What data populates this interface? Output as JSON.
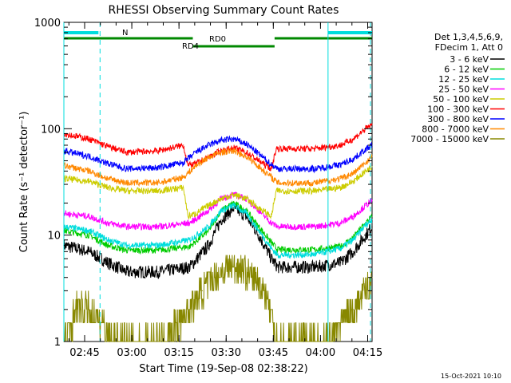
{
  "chart_data": {
    "type": "line",
    "title": "RHESSI Observing Summary Count Rates",
    "xlabel": "Start Time (19-Sep-08 02:38:22)",
    "ylabel": "Count Rate (s⁻¹ detector⁻¹)",
    "y_scale": "log",
    "ylim": [
      1,
      1000
    ],
    "xlim_minutes_after_start": [
      0,
      98
    ],
    "x_ticks": [
      {
        "label": "02:45",
        "t": 6.6
      },
      {
        "label": "03:00",
        "t": 21.6
      },
      {
        "label": "03:15",
        "t": 36.6
      },
      {
        "label": "03:30",
        "t": 51.6
      },
      {
        "label": "03:45",
        "t": 66.6
      },
      {
        "label": "04:00",
        "t": 81.6
      },
      {
        "label": "04:15",
        "t": 96.6
      }
    ],
    "y_ticks": [
      {
        "label": "1",
        "v": 1
      },
      {
        "label": "10",
        "v": 10
      },
      {
        "label": "100",
        "v": 100
      },
      {
        "label": "1000",
        "v": 1000
      }
    ],
    "legend": {
      "placement": "right",
      "header": [
        "Det 1,3,4,5,6,9,",
        "FDecim 1, Att 0"
      ]
    },
    "series": [
      {
        "name": "3 - 6 keV",
        "color": "#000000",
        "x": [
          0,
          8,
          14,
          20,
          30,
          40,
          46,
          50,
          54,
          58,
          62,
          66,
          68,
          72,
          80,
          88,
          92,
          96,
          98
        ],
        "y": [
          8,
          7,
          5.5,
          4.5,
          4.5,
          5,
          8,
          14,
          18,
          15,
          10,
          6,
          5,
          5,
          5,
          5.5,
          7,
          10,
          12
        ]
      },
      {
        "name": "6 - 12 keV",
        "color": "#00cc00",
        "x": [
          0,
          8,
          14,
          20,
          30,
          40,
          46,
          50,
          54,
          58,
          62,
          66,
          68,
          72,
          80,
          88,
          92,
          96,
          98
        ],
        "y": [
          11,
          10,
          8,
          7.2,
          7.2,
          7.8,
          11,
          17,
          20,
          17,
          12,
          8.5,
          7.3,
          7.3,
          7.3,
          7.8,
          9.5,
          13,
          15
        ]
      },
      {
        "name": "12 - 25 keV",
        "color": "#00dddd",
        "x": [
          0,
          8,
          14,
          20,
          30,
          40,
          46,
          50,
          54,
          58,
          62,
          66,
          68,
          72,
          80,
          88,
          92,
          96,
          98
        ],
        "y": [
          12,
          11,
          9,
          8,
          8,
          9,
          12,
          17,
          19,
          16,
          11,
          7.5,
          6.5,
          6.5,
          6.6,
          7.5,
          9,
          12.5,
          14
        ]
      },
      {
        "name": "25 - 50 keV",
        "color": "#ff00ff",
        "x": [
          0,
          8,
          14,
          20,
          30,
          40,
          46,
          50,
          54,
          58,
          62,
          66,
          68,
          72,
          80,
          88,
          92,
          96,
          98
        ],
        "y": [
          16,
          15,
          13,
          12,
          12,
          13,
          17,
          22,
          24,
          22,
          17,
          13,
          12,
          12,
          12,
          13,
          15,
          19,
          21
        ]
      },
      {
        "name": "50 - 100 keV",
        "color": "#cccc00",
        "x": [
          0,
          8,
          14,
          20,
          30,
          38,
          39.5,
          42,
          46,
          50,
          54,
          58,
          62,
          66,
          67.5,
          72,
          80,
          88,
          92,
          96,
          98
        ],
        "y": [
          34,
          32,
          28,
          26,
          26,
          28,
          15,
          16,
          19,
          22,
          24,
          22,
          18,
          15,
          26,
          26,
          26,
          28,
          32,
          40,
          44
        ]
      },
      {
        "name": "100 - 300 keV",
        "color": "#ff0000",
        "x": [
          0,
          8,
          14,
          20,
          30,
          38,
          39.5,
          42,
          46,
          50,
          54,
          58,
          62,
          66,
          67.5,
          72,
          80,
          88,
          92,
          96,
          98
        ],
        "y": [
          90,
          80,
          68,
          60,
          62,
          70,
          45,
          47,
          54,
          62,
          66,
          60,
          50,
          42,
          65,
          65,
          65,
          70,
          80,
          100,
          110
        ]
      },
      {
        "name": "300 - 800 keV",
        "color": "#0000ff",
        "x": [
          0,
          8,
          14,
          20,
          30,
          38,
          42,
          46,
          50,
          54,
          58,
          62,
          66,
          68,
          72,
          80,
          88,
          92,
          96,
          98
        ],
        "y": [
          62,
          55,
          47,
          42,
          43,
          48,
          60,
          70,
          78,
          80,
          72,
          58,
          46,
          42,
          42,
          42,
          46,
          52,
          64,
          70
        ]
      },
      {
        "name": "800 - 7000 keV",
        "color": "#ff8800",
        "x": [
          0,
          8,
          14,
          20,
          30,
          38,
          42,
          46,
          50,
          54,
          58,
          62,
          66,
          68,
          72,
          80,
          88,
          92,
          96,
          98
        ],
        "y": [
          45,
          40,
          34,
          31,
          31,
          35,
          45,
          54,
          60,
          62,
          55,
          44,
          35,
          31,
          31,
          31,
          34,
          38,
          48,
          55
        ]
      },
      {
        "name": "7000 - 15000 keV",
        "color": "#888800",
        "x": [
          0,
          4,
          8,
          12,
          16,
          20,
          24,
          28,
          32,
          36,
          40,
          44,
          48,
          52,
          56,
          60,
          64,
          68,
          72,
          76,
          80,
          84,
          88,
          92,
          96,
          98
        ],
        "y": [
          1,
          2,
          2,
          1.5,
          1,
          1,
          1,
          1,
          1,
          1.5,
          2,
          3,
          4,
          5,
          5,
          4,
          3,
          1,
          1,
          1,
          1,
          1,
          1.5,
          2,
          3,
          4
        ]
      }
    ],
    "annotations": [
      {
        "text": "N",
        "color": "#00dddd"
      },
      {
        "text": "RD0",
        "color": "#008800"
      },
      {
        "text": "RD4",
        "color": "#008800"
      }
    ],
    "status_bars": {
      "night": [
        [
          0,
          11
        ],
        [
          84,
          98
        ]
      ],
      "rd0": [
        [
          0,
          41
        ],
        [
          67,
          98
        ]
      ],
      "rd4": [
        [
          41,
          67
        ]
      ],
      "night_dashed": [
        11.5,
        97.5
      ],
      "night_solid": [
        0,
        84
      ]
    }
  },
  "footer": {
    "timestamp": "15-Oct-2021 10:10"
  }
}
